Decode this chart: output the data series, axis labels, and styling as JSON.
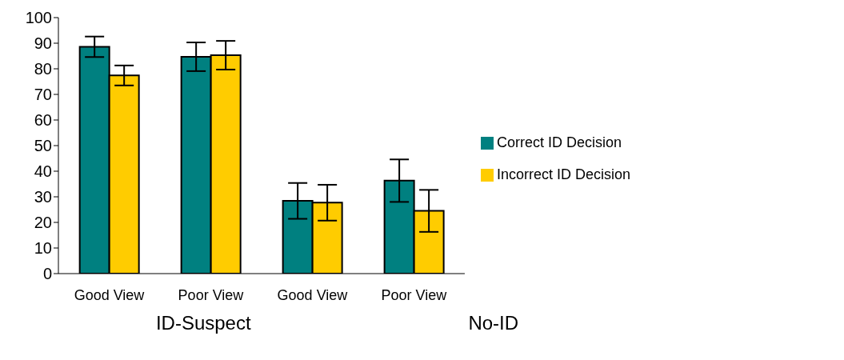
{
  "chart_data": {
    "type": "bar",
    "categories": [
      "Good View",
      "Poor View",
      "Good View",
      "Poor View"
    ],
    "series": [
      {
        "name": "Correct ID Decision",
        "color": "#008080",
        "values": [
          88.6,
          84.7,
          28.4,
          36.3
        ],
        "errors": [
          4,
          5.6,
          7,
          8.3
        ]
      },
      {
        "name": "Incorrect ID Decision",
        "color": "#ffcc00",
        "values": [
          77.4,
          85.3,
          27.7,
          24.5
        ],
        "errors": [
          3.9,
          5.6,
          7,
          8.2
        ]
      }
    ],
    "annotations": [
      "ID-Suspect",
      "No-ID"
    ],
    "ylim": [
      0,
      100
    ],
    "yticks": [
      0,
      10,
      20,
      30,
      40,
      50,
      60,
      70,
      80,
      90,
      100
    ],
    "grid": false,
    "legend": "right"
  }
}
